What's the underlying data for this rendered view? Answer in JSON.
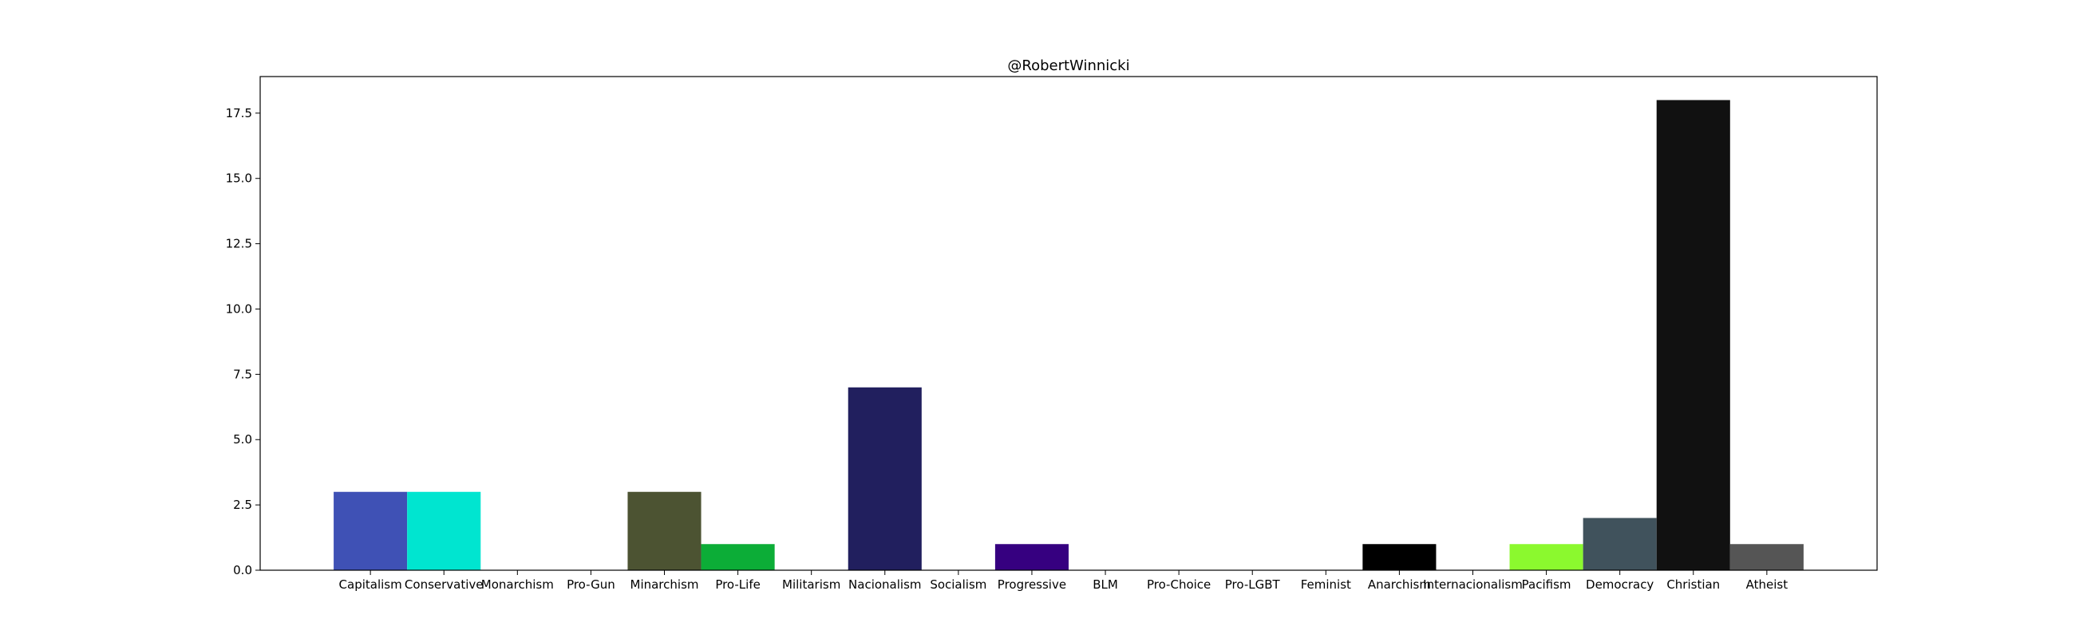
{
  "chart_data": {
    "type": "bar",
    "title": "@RobertWinnicki",
    "xlabel": "",
    "ylabel": "",
    "categories": [
      "Capitalism",
      "Conservative",
      "Monarchism",
      "Pro-Gun",
      "Minarchism",
      "Pro-Life",
      "Militarism",
      "Nacionalism",
      "Socialism",
      "Progressive",
      "BLM",
      "Pro-Choice",
      "Pro-LGBT",
      "Feminist",
      "Anarchism",
      "Internacionalism",
      "Pacifism",
      "Democracy",
      "Christian",
      "Atheist"
    ],
    "values": [
      3,
      3,
      0,
      0,
      3,
      1,
      0,
      7,
      0,
      1,
      0,
      0,
      0,
      0,
      1,
      0,
      1,
      2,
      18,
      1
    ],
    "colors": [
      "#3f51b5",
      "#00e5d0",
      "#888888",
      "#888888",
      "#4c5332",
      "#0cad37",
      "#888888",
      "#211f5e",
      "#888888",
      "#360080",
      "#888888",
      "#888888",
      "#888888",
      "#888888",
      "#000000",
      "#888888",
      "#8bf92e",
      "#40525c",
      "#111111",
      "#555555"
    ],
    "ylim": [
      0,
      18.9
    ],
    "yticks": [
      "0.0",
      "2.5",
      "5.0",
      "7.5",
      "10.0",
      "12.5",
      "15.0",
      "17.5"
    ],
    "grid": false,
    "legend": "none"
  }
}
